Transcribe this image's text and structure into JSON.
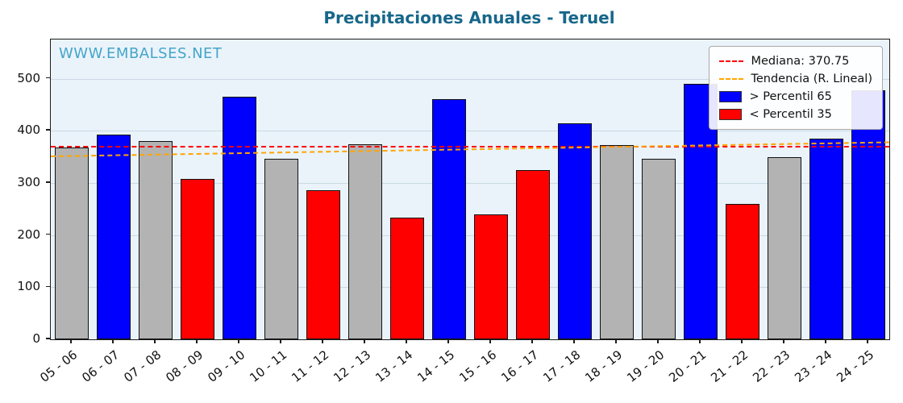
{
  "chart_data": {
    "type": "bar",
    "title": "Precipitaciones Anuales - Teruel",
    "watermark": "WWW.EMBALSES.NET",
    "categories": [
      "05 - 06",
      "06 - 07",
      "07 - 08",
      "08 - 09",
      "09 - 10",
      "10 - 11",
      "11 - 12",
      "12 - 13",
      "13 - 14",
      "14 - 15",
      "15 - 16",
      "16 - 17",
      "17 - 18",
      "18 - 19",
      "19 - 20",
      "20 - 21",
      "21 - 22",
      "22 - 23",
      "23 - 24",
      "24 - 25"
    ],
    "values": [
      368,
      392,
      381,
      308,
      465,
      347,
      286,
      374,
      233,
      460,
      240,
      325,
      415,
      373,
      347,
      490,
      260,
      349,
      385,
      477
    ],
    "bar_classes": [
      "neutral",
      "above",
      "neutral",
      "below",
      "above",
      "neutral",
      "below",
      "neutral",
      "below",
      "above",
      "below",
      "below",
      "above",
      "neutral",
      "neutral",
      "above",
      "below",
      "neutral",
      "above",
      "above"
    ],
    "median": 370.75,
    "trend": {
      "start": 352,
      "end": 379
    },
    "ylim": [
      0,
      575
    ],
    "yticks": [
      0,
      100,
      200,
      300,
      400,
      500
    ],
    "grid": true,
    "legend": {
      "position": "top-right",
      "items": [
        {
          "label": "Mediana: 370.75",
          "swatch": "dashed-line",
          "color": "#ff0000"
        },
        {
          "label": "Tendencia (R. Lineal)",
          "swatch": "dashed-line",
          "color": "#ffa500"
        },
        {
          "label": "> Percentil 65",
          "swatch": "patch",
          "color": "#0000ff"
        },
        {
          "label": "< Percentil 35",
          "swatch": "patch",
          "color": "#ff0000"
        }
      ]
    },
    "colors": {
      "above": "#0000ff",
      "below": "#ff0000",
      "neutral": "#b3b3b3",
      "median_line": "#ff0000",
      "trend_line": "#ffa500",
      "title": "#17678a",
      "watermark": "#45a5c9",
      "plot_bg": "#eaf3fa",
      "bar_edge": "#111111"
    }
  }
}
